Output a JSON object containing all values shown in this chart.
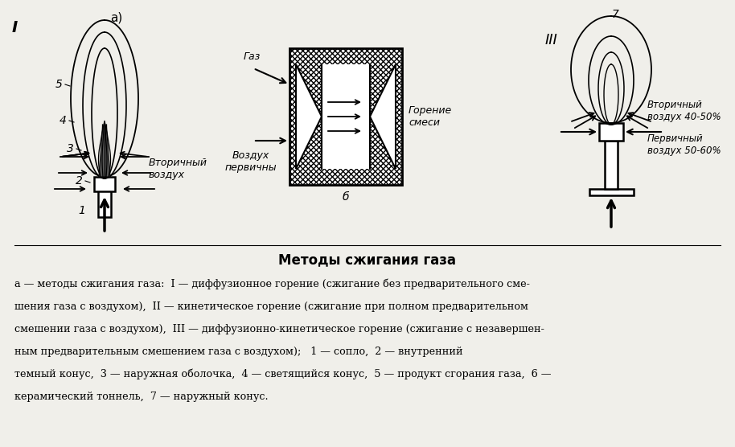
{
  "title": "Методы сжигания газа",
  "caption_line1": "а — методы сжигания газа:  I — диффузионное горение (сжигание без предварительного сме-",
  "caption_line2": "шения газа с воздухом),  II — кинетическое горение (сжигание при полном предварительном",
  "caption_line3": "смешении газа с воздухом),  III — диффузионно-кинетическое горение (сжигание с незавершен-",
  "caption_line4": "ным предварительным смешением газа с воздухом);   1 — сопло,  2 — внутренний",
  "caption_line5": "темный конус,  3 — наружная оболочка,  4 — светящийся конус,  5 — продукт сгорания газа,  6 —",
  "caption_line6": "керамический тоннель,  7 — наружный конус.",
  "bg_color": "#f0efea",
  "label_I": "I",
  "label_a": "а)",
  "label_III": "III",
  "secondary_air_label": "Вторичный\nвоздух",
  "gas_label": "Газ",
  "primary_air_label": "Воздух\nпервичны",
  "combustion_label": "Горение\nсмеси",
  "b_label": "б",
  "secondary_air_pct": "Вторичный\nвоздух 40-50%",
  "primary_air_pct": "Первичный\nвоздух 50-60%"
}
